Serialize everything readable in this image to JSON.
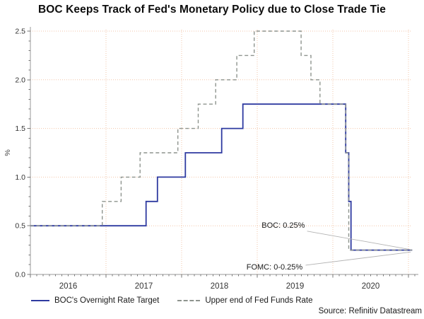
{
  "title": "BOC Keeps Track of Fed's Monetary Policy due to Close Trade Tie",
  "source": "Source: Refinitiv Datastream",
  "legend": {
    "items": [
      {
        "label": "BOC's Overnight Rate Target",
        "style": "solid",
        "color": "#2e3aa0"
      },
      {
        "label": "Upper end of Fed Funds Rate",
        "style": "dashed",
        "color": "#8e948e"
      }
    ]
  },
  "colors": {
    "boc_line": "#2e3aa0",
    "fed_line": "#8e948e",
    "grid": "#f2c5a8",
    "axis": "#999999",
    "tick": "#777777",
    "tick_label": "#333333",
    "annotation_text": "#1a1a1a",
    "annotation_line": "#b3b3b3"
  },
  "chart_data": {
    "type": "line",
    "subtype": "step-after",
    "title": "BOC Keeps Track of Fed's Monetary Policy due to Close Trade Tie",
    "xlabel": "",
    "ylabel": "%",
    "xlim": [
      2016.0,
      2021.05
    ],
    "ylim": [
      0.0,
      2.5
    ],
    "x_tick_years": [
      2016,
      2017,
      2018,
      2019,
      2020
    ],
    "y_ticks": [
      0.0,
      0.5,
      1.0,
      1.5,
      2.0,
      2.5
    ],
    "grid": true,
    "legend_position": "bottom-left",
    "series": [
      {
        "name": "BOC's Overnight Rate Target",
        "style": "solid",
        "color": "#2e3aa0",
        "points": [
          [
            2016.0,
            0.5
          ],
          [
            2017.53,
            0.75
          ],
          [
            2017.68,
            1.0
          ],
          [
            2018.05,
            1.25
          ],
          [
            2018.53,
            1.5
          ],
          [
            2018.81,
            1.75
          ],
          [
            2020.17,
            1.25
          ],
          [
            2020.21,
            0.75
          ],
          [
            2020.24,
            0.25
          ],
          [
            2021.05,
            0.25
          ]
        ]
      },
      {
        "name": "Upper end of Fed Funds Rate",
        "style": "dashed",
        "color": "#8e948e",
        "points": [
          [
            2016.0,
            0.5
          ],
          [
            2016.95,
            0.75
          ],
          [
            2017.2,
            1.0
          ],
          [
            2017.45,
            1.25
          ],
          [
            2017.95,
            1.5
          ],
          [
            2018.22,
            1.75
          ],
          [
            2018.45,
            2.0
          ],
          [
            2018.73,
            2.25
          ],
          [
            2018.96,
            2.5
          ],
          [
            2019.58,
            2.25
          ],
          [
            2019.71,
            2.0
          ],
          [
            2019.83,
            1.75
          ],
          [
            2020.17,
            1.25
          ],
          [
            2020.21,
            0.25
          ],
          [
            2021.05,
            0.25
          ]
        ]
      }
    ],
    "annotations": [
      {
        "text": "BOC: 0.25%",
        "text_x": 2019.63,
        "text_y": 0.48,
        "line_from_x": 2019.66,
        "line_from_y": 0.445,
        "line_to_x": 2021.03,
        "line_to_y": 0.255
      },
      {
        "text": "FOMC: 0-0.25%",
        "text_x": 2019.6,
        "text_y": 0.05,
        "line_from_x": 2019.64,
        "line_from_y": 0.095,
        "line_to_x": 2021.03,
        "line_to_y": 0.23
      }
    ]
  }
}
